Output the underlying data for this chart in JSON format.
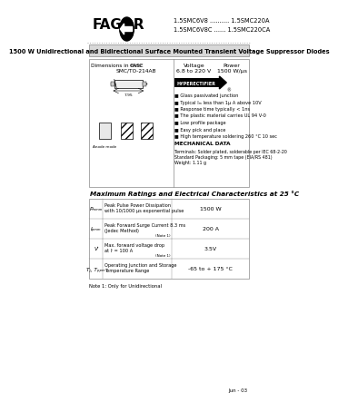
{
  "bg_color": "#ffffff",
  "header_part1": "1.5SMC6V8 .......... 1.5SMC220A",
  "header_part2": "1.5SMC6V8C ...... 1.5SMC220CA",
  "brand": "FAGOR",
  "title": "1500 W Unidirectional and Bidirectional Surface Mounted Transient Voltage Suppressor Diodes",
  "case_label": "CASE\nSMC/TO-214AB",
  "voltage_label": "Voltage\n6.8 to 220 V",
  "power_label": "Power\n1500 W/μs",
  "features": [
    "Glass passivated junction",
    "Typical Iₘ less than 1μ A above 10V",
    "Response time typically < 1ns",
    "The plastic material carries UL 94 V-0",
    "Low profile package",
    "Easy pick and place",
    "High temperature soldering 260 °C 10 sec"
  ],
  "mech_title": "MECHANICAL DATA",
  "mech_data": "Terminals: Solder plated, solderable per IEC 68-2-20\nStandard Packaging: 5 mm tape (EIA/RS 481)\nWeight: 1.11 g",
  "table_title": "Maximum Ratings and Electrical Characteristics at 25 °C",
  "table_rows": [
    {
      "symbol": "Pₘₘₘ",
      "description": "Peak Pulse Power Dissipation\nwith 10/1000 μs exponential pulse",
      "value": "1500 W",
      "note": ""
    },
    {
      "symbol": "Iₚₘₘ",
      "description": "Peak Forward Surge Current 8.3 ms\n(Jedec Method)",
      "value": "200 A",
      "note": "(Note 1)"
    },
    {
      "symbol": "Vⁱ",
      "description": "Max. forward voltage drop\nat Iⁱ = 100 A",
      "value": "3.5V",
      "note": "(Note 1)"
    },
    {
      "symbol": "Tⱼ, Tₚₚₘ",
      "description": "Operating Junction and Storage\nTemperature Range",
      "value": "-65 to + 175 °C",
      "note": ""
    }
  ],
  "footnote": "Note 1: Only for Unidirectional",
  "date": "Jun - 03",
  "dim_label": "Dimensions in mm."
}
